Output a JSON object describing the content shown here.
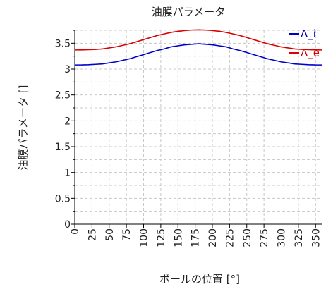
{
  "chart_data": {
    "type": "line",
    "title": "油膜パラメータ",
    "xlabel": "ボールの位置 [°]",
    "ylabel": "油膜パラメータ []",
    "xlim": [
      0,
      360
    ],
    "ylim": [
      0,
      3.75
    ],
    "x_ticks": [
      0,
      25,
      50,
      75,
      100,
      125,
      150,
      175,
      200,
      225,
      250,
      275,
      300,
      325,
      350
    ],
    "y_ticks": [
      0,
      0.5,
      1,
      1.5,
      2,
      2.5,
      3,
      3.5
    ],
    "grid": true,
    "legend_position": "top-right",
    "x": [
      0,
      10,
      20,
      30,
      40,
      50,
      60,
      70,
      80,
      90,
      100,
      110,
      120,
      130,
      140,
      150,
      160,
      170,
      180,
      190,
      200,
      210,
      220,
      230,
      240,
      250,
      260,
      270,
      280,
      290,
      300,
      310,
      320,
      330,
      340,
      350,
      360
    ],
    "series": [
      {
        "name": "Λ_i",
        "color": "#0000cc",
        "values": [
          3.08,
          3.081,
          3.085,
          3.092,
          3.1,
          3.12,
          3.14,
          3.17,
          3.2,
          3.24,
          3.28,
          3.32,
          3.36,
          3.39,
          3.43,
          3.45,
          3.47,
          3.48,
          3.49,
          3.48,
          3.47,
          3.45,
          3.43,
          3.39,
          3.36,
          3.32,
          3.28,
          3.24,
          3.2,
          3.17,
          3.14,
          3.12,
          3.1,
          3.092,
          3.085,
          3.081,
          3.08
        ]
      },
      {
        "name": "Λ_e",
        "color": "#dd0000",
        "values": [
          3.37,
          3.371,
          3.375,
          3.38,
          3.39,
          3.41,
          3.43,
          3.46,
          3.49,
          3.53,
          3.57,
          3.61,
          3.65,
          3.68,
          3.71,
          3.73,
          3.745,
          3.755,
          3.76,
          3.755,
          3.745,
          3.73,
          3.71,
          3.68,
          3.65,
          3.61,
          3.57,
          3.53,
          3.49,
          3.46,
          3.43,
          3.41,
          3.39,
          3.38,
          3.375,
          3.371,
          3.37
        ]
      }
    ]
  }
}
